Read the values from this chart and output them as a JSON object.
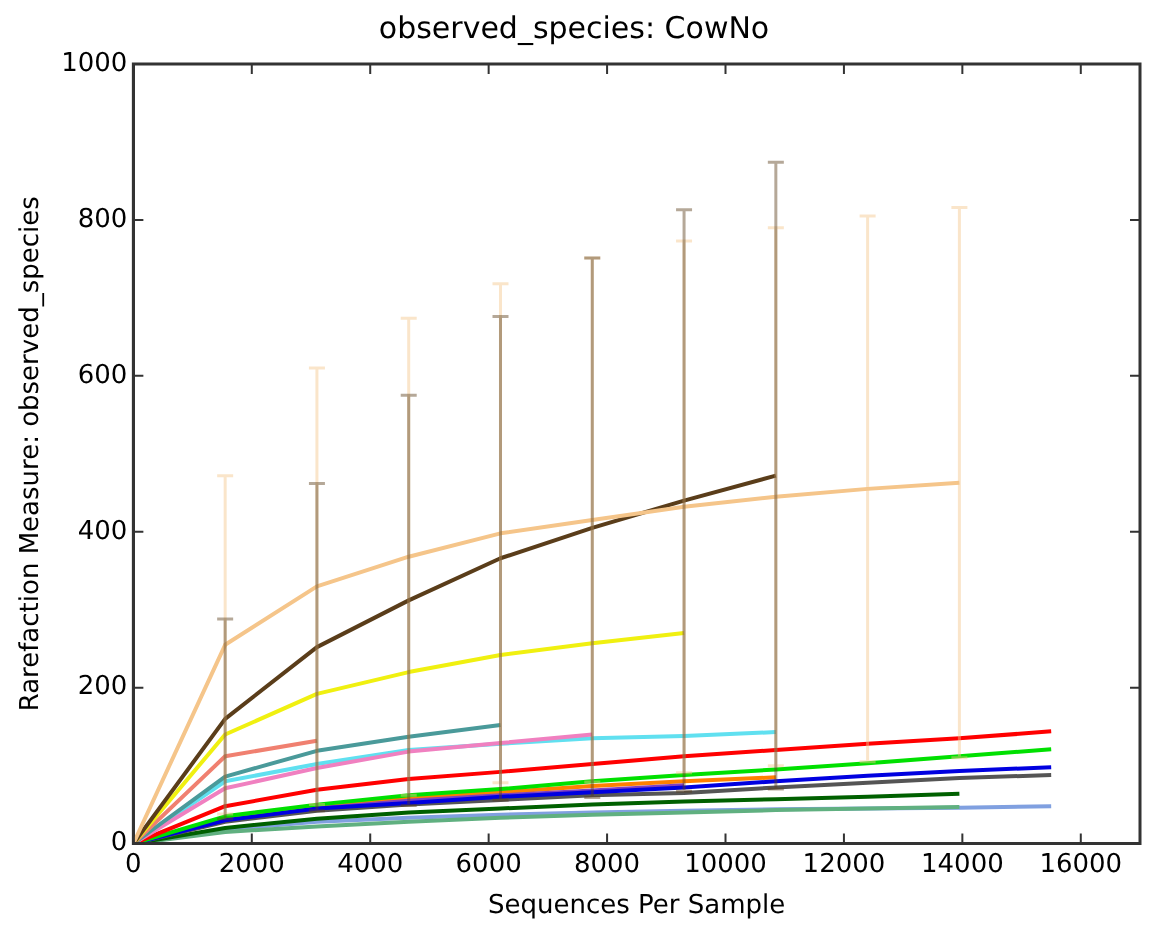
{
  "chart_data": {
    "type": "line",
    "title": "observed_species: CowNo",
    "xlabel": "Sequences Per Sample",
    "ylabel": "Rarefaction Measure: observed_species",
    "x": [
      0,
      1550,
      3100,
      4650,
      6200,
      7750,
      9300,
      10850,
      12400,
      13950,
      15500
    ],
    "xlim": [
      0,
      17000
    ],
    "xticks": [
      0,
      2000,
      4000,
      6000,
      8000,
      10000,
      12000,
      14000,
      16000
    ],
    "ylim": [
      0,
      1000
    ],
    "yticks": [
      0,
      200,
      400,
      600,
      800,
      1000
    ],
    "marker": "none",
    "legend": false,
    "series": [
      {
        "color": "#f5c58a",
        "values": [
          0,
          255,
          330,
          368,
          398,
          415,
          432,
          445,
          455,
          463,
          null
        ],
        "errors": [
          null,
          217,
          280,
          306,
          320,
          336,
          341,
          345,
          350,
          353,
          null
        ]
      },
      {
        "color": "#5a3d1a",
        "values": [
          0,
          160,
          252,
          312,
          366,
          405,
          440,
          472,
          null,
          null,
          null
        ],
        "errors": [
          null,
          128,
          210,
          263,
          310,
          346,
          373,
          402,
          null,
          null,
          null
        ]
      },
      {
        "color": "#f0f010",
        "values": [
          0,
          140,
          192,
          220,
          242,
          257,
          270,
          null,
          null,
          null,
          null
        ]
      },
      {
        "color": "#f08070",
        "values": [
          0,
          112,
          132,
          null,
          null,
          null,
          null,
          null,
          null,
          null,
          null
        ]
      },
      {
        "color": "#4a9a9a",
        "values": [
          0,
          86,
          119,
          137,
          152,
          null,
          null,
          null,
          null,
          null,
          null
        ]
      },
      {
        "color": "#f080c0",
        "values": [
          0,
          71,
          97,
          118,
          129,
          140,
          null,
          null,
          null,
          null,
          null
        ]
      },
      {
        "color": "#60e0f0",
        "values": [
          0,
          80,
          102,
          120,
          128,
          135,
          138,
          143,
          null,
          null,
          null
        ]
      },
      {
        "color": "#ff0000",
        "values": [
          0,
          48,
          69,
          83,
          92,
          102,
          112,
          120,
          128,
          135,
          144
        ]
      },
      {
        "color": "#00e000",
        "values": [
          0,
          35,
          50,
          62,
          70,
          80,
          88,
          95,
          103,
          112,
          121
        ]
      },
      {
        "color": "#0000e0",
        "values": [
          0,
          30,
          45,
          52,
          60,
          66,
          72,
          80,
          87,
          93,
          98
        ]
      },
      {
        "color": "#555555",
        "values": [
          0,
          28,
          42,
          50,
          56,
          62,
          65,
          72,
          78,
          84,
          88
        ]
      },
      {
        "color": "#8040c0",
        "values": [
          0,
          30,
          45,
          55,
          62,
          68,
          75,
          null,
          null,
          null,
          null
        ]
      },
      {
        "color": "#ff8000",
        "values": [
          0,
          32,
          48,
          58,
          66,
          74,
          80,
          85,
          null,
          null,
          null
        ]
      },
      {
        "color": "#006000",
        "values": [
          0,
          20,
          32,
          40,
          45,
          50,
          54,
          57,
          60,
          64,
          null
        ]
      },
      {
        "color": "#60b080",
        "values": [
          0,
          15,
          22,
          28,
          33,
          37,
          40,
          43,
          45,
          47,
          null
        ]
      },
      {
        "color": "#80a0e0",
        "values": [
          0,
          18,
          28,
          33,
          37,
          40,
          42,
          44,
          45,
          46,
          48
        ]
      }
    ]
  }
}
